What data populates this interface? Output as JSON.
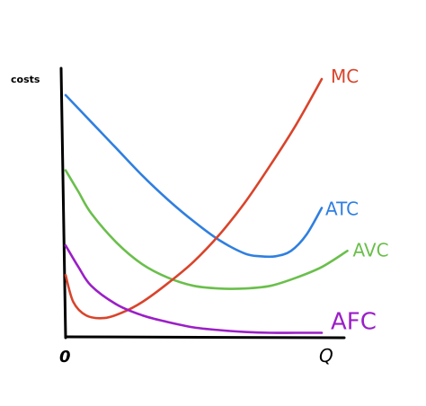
{
  "chart_data": {
    "type": "line",
    "title": "",
    "ylabel": "costs",
    "xlabel": "Q",
    "origin_label": "0",
    "xlim": [
      0,
      100
    ],
    "ylim": [
      0,
      100
    ],
    "grid": false,
    "legend": "labels at right end of each curve",
    "series": [
      {
        "name": "ATC",
        "color": "#2f7fe0",
        "x": [
          0,
          10,
          20,
          30,
          40,
          50,
          60,
          70,
          76,
          82,
          88,
          94,
          100
        ],
        "y": [
          90,
          80,
          70,
          60,
          51,
          43,
          36,
          31,
          30,
          30,
          32,
          38,
          48
        ]
      },
      {
        "name": "AVC",
        "color": "#6abf4b",
        "x": [
          0,
          5,
          10,
          20,
          30,
          40,
          50,
          60,
          70,
          80,
          90,
          100,
          110
        ],
        "y": [
          62,
          54,
          46,
          35,
          27,
          22,
          19,
          18,
          18,
          19,
          22,
          26,
          32
        ]
      },
      {
        "name": "MC",
        "color": "#d9442b",
        "x": [
          0,
          3,
          8,
          15,
          22,
          30,
          40,
          50,
          60,
          70,
          80,
          90,
          100
        ],
        "y": [
          23,
          13,
          8,
          7,
          9,
          13,
          20,
          28,
          38,
          50,
          64,
          79,
          96
        ]
      },
      {
        "name": "AFC",
        "color": "#9b1fc7",
        "x": [
          0,
          5,
          10,
          20,
          30,
          40,
          50,
          60,
          70,
          80,
          90,
          100
        ],
        "y": [
          34,
          26,
          19,
          12,
          8,
          5.5,
          3.5,
          2.5,
          1.8,
          1.5,
          1.5,
          1.5
        ]
      }
    ]
  }
}
